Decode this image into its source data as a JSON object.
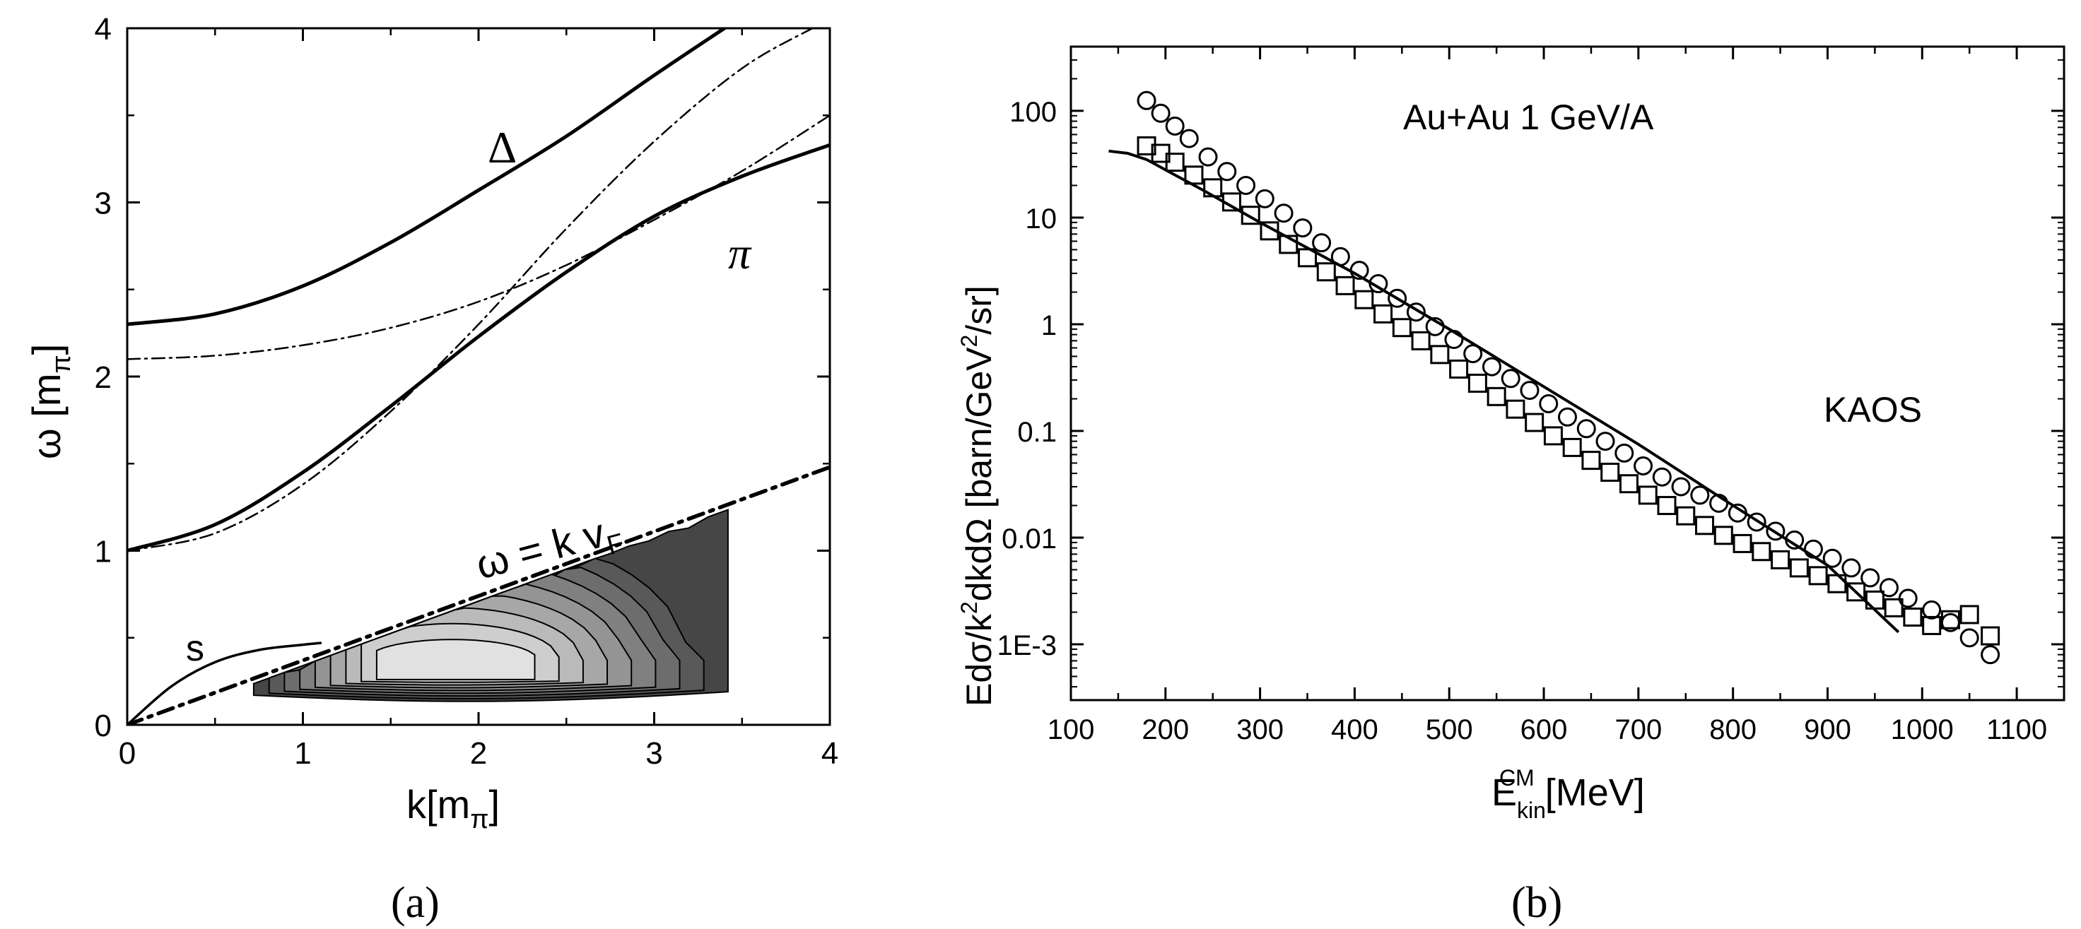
{
  "panel_a": {
    "label": "(a)",
    "xlabel_main": "k[m",
    "xlabel_sub": "π",
    "xlabel_close": "]",
    "ylabel_main": "ω [m",
    "ylabel_sub": "π",
    "ylabel_close": "]",
    "curve_labels": {
      "delta": "Δ",
      "pi": "π",
      "s": "s",
      "fermi_main": "ω = k v",
      "fermi_sub": "F"
    }
  },
  "panel_b": {
    "label": "(b)",
    "title": "Au+Au 1 GeV/A",
    "exp_label": "KAOS",
    "xlabel_main": "E",
    "xlabel_sup": "CM",
    "xlabel_sub": "kin",
    "xlabel_unit": " [MeV]",
    "ylabel_a": "Edσ/k",
    "ylabel_sup1": "2",
    "ylabel_b": "dkdΩ [barn/GeV",
    "ylabel_sup2": "2",
    "ylabel_c": "/sr]"
  },
  "chart_data": [
    {
      "type": "line",
      "title": "",
      "xlabel": "k[mπ]",
      "ylabel": "ω [mπ]",
      "xlim": [
        0,
        4
      ],
      "ylim": [
        0,
        4
      ],
      "xticks": [
        "0",
        "1",
        "2",
        "3",
        "4"
      ],
      "yticks": [
        "0",
        "1",
        "2",
        "3",
        "4"
      ],
      "series": [
        {
          "name": "Δ",
          "style": "solid-thick",
          "x": [
            0,
            0.5,
            1,
            1.5,
            2,
            2.5,
            3,
            3.4
          ],
          "y": [
            2.3,
            2.36,
            2.52,
            2.77,
            3.07,
            3.38,
            3.73,
            4.0
          ]
        },
        {
          "name": "Δ dash-dot",
          "style": "dash-dot",
          "x": [
            0,
            0.5,
            1,
            1.5,
            2,
            2.5,
            3,
            3.5,
            4
          ],
          "y": [
            2.1,
            2.12,
            2.18,
            2.28,
            2.43,
            2.64,
            2.9,
            3.18,
            3.5
          ]
        },
        {
          "name": "π",
          "style": "solid-thick",
          "x": [
            0,
            0.5,
            1,
            1.5,
            2,
            2.5,
            3,
            3.5,
            4
          ],
          "y": [
            1.0,
            1.15,
            1.45,
            1.83,
            2.23,
            2.6,
            2.92,
            3.15,
            3.33
          ]
        },
        {
          "name": "π dash-dot",
          "style": "dash-dot",
          "x": [
            0,
            0.5,
            1,
            1.5,
            2,
            2.5,
            3,
            3.5,
            3.9
          ],
          "y": [
            1.0,
            1.1,
            1.38,
            1.8,
            2.3,
            2.85,
            3.35,
            3.77,
            4.0
          ]
        },
        {
          "name": "ω = k vF",
          "style": "dash-dot-thick",
          "x": [
            0,
            4
          ],
          "y": [
            0,
            1.48
          ]
        },
        {
          "name": "s",
          "style": "solid",
          "x": [
            0,
            0.25,
            0.5,
            0.75,
            1.0,
            1.1
          ],
          "y": [
            0,
            0.22,
            0.36,
            0.43,
            0.46,
            0.47
          ]
        }
      ],
      "contour_levels": 9,
      "contour_region": {
        "k_range": [
          0.72,
          3.42
        ],
        "omega_range": [
          0.15,
          1.2
        ],
        "peak": [
          1.85,
          0.35
        ]
      }
    },
    {
      "type": "scatter",
      "title": "Au+Au 1 GeV/A",
      "xlabel": "E_kin^CM [MeV]",
      "ylabel": "Edσ/k²dkdΩ [barn/GeV²/sr]",
      "xlim": [
        100,
        1150
      ],
      "ylim": [
        0.0003,
        400
      ],
      "yscale": "log",
      "xticks": [
        "100",
        "200",
        "300",
        "400",
        "500",
        "600",
        "700",
        "800",
        "900",
        "1000",
        "1100"
      ],
      "yticks": [
        "1E-3",
        "0.01",
        "0.1",
        "1",
        "10",
        "100"
      ],
      "series": [
        {
          "name": "circles",
          "marker": "circle",
          "x": [
            180,
            195,
            210,
            225,
            245,
            265,
            285,
            305,
            325,
            345,
            365,
            385,
            405,
            425,
            445,
            465,
            485,
            505,
            525,
            545,
            565,
            585,
            605,
            625,
            645,
            665,
            685,
            705,
            725,
            745,
            765,
            785,
            805,
            825,
            845,
            865,
            885,
            905,
            925,
            945,
            965,
            985,
            1010,
            1030,
            1050,
            1072
          ],
          "y": [
            125,
            95,
            72,
            55,
            37,
            27,
            20,
            15,
            11,
            8.0,
            5.8,
            4.3,
            3.2,
            2.4,
            1.75,
            1.3,
            0.95,
            0.72,
            0.53,
            0.4,
            0.31,
            0.24,
            0.18,
            0.135,
            0.105,
            0.08,
            0.062,
            0.047,
            0.037,
            0.03,
            0.025,
            0.021,
            0.017,
            0.014,
            0.0115,
            0.0095,
            0.0078,
            0.0064,
            0.0052,
            0.0042,
            0.0034,
            0.0027,
            0.0021,
            0.0016,
            0.00115,
            0.0008
          ]
        },
        {
          "name": "squares",
          "marker": "square",
          "x": [
            180,
            195,
            210,
            230,
            250,
            270,
            290,
            310,
            330,
            350,
            370,
            390,
            410,
            430,
            450,
            470,
            490,
            510,
            530,
            550,
            570,
            590,
            610,
            630,
            650,
            670,
            690,
            710,
            730,
            750,
            770,
            790,
            810,
            830,
            850,
            870,
            890,
            910,
            930,
            950,
            970,
            990,
            1010,
            1030,
            1050,
            1072
          ],
          "y": [
            47,
            40,
            33,
            25,
            19,
            14,
            10.5,
            7.5,
            5.6,
            4.2,
            3.1,
            2.3,
            1.7,
            1.25,
            0.93,
            0.7,
            0.52,
            0.38,
            0.28,
            0.21,
            0.16,
            0.12,
            0.09,
            0.07,
            0.053,
            0.041,
            0.032,
            0.025,
            0.02,
            0.016,
            0.013,
            0.0105,
            0.0088,
            0.0074,
            0.0062,
            0.0052,
            0.0044,
            0.0037,
            0.0031,
            0.0026,
            0.0022,
            0.0018,
            0.0015,
            0.0017,
            0.0019,
            0.0012
          ]
        },
        {
          "name": "model",
          "marker": "line",
          "x": [
            140,
            160,
            180,
            200,
            240,
            300,
            400,
            500,
            600,
            700,
            800,
            900,
            975
          ],
          "y": [
            42,
            40,
            35,
            28,
            18,
            9,
            3.0,
            0.9,
            0.26,
            0.075,
            0.02,
            0.0055,
            0.0013
          ]
        }
      ]
    }
  ]
}
